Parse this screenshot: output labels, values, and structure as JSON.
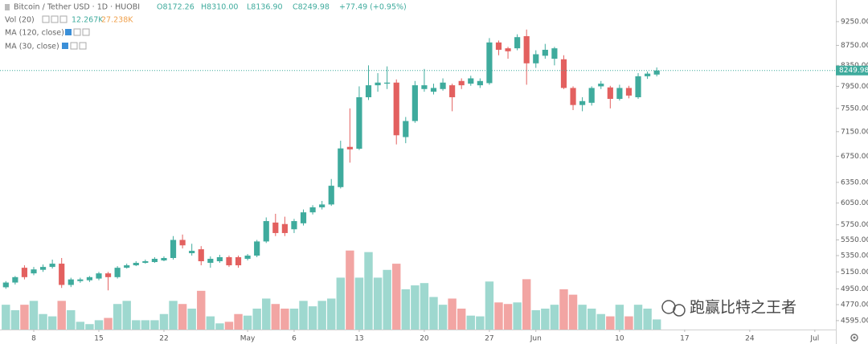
{
  "chart_data": {
    "type": "candlestick",
    "header": {
      "symbol": "Bitcoin / Tether USD · 1D · HUOBI",
      "open": "O8172.26",
      "high": "H8310.00",
      "low": "L8136.90",
      "close": "C8249.98",
      "change": "+77.49 (+0.95%)",
      "volume_study": "Vol (20)",
      "volume_now": "12.267K",
      "volume_ma": "27.238K",
      "ma1": "MA (120, close)",
      "ma2": "MA (30, close)"
    },
    "watermark": "跑赢比特之王者",
    "x": [
      0,
      1,
      2,
      3,
      4,
      5,
      6,
      7,
      8,
      9,
      10,
      11,
      12,
      13,
      14,
      15,
      16,
      17,
      18,
      19,
      20,
      21,
      22,
      23,
      24,
      25,
      26,
      27,
      28,
      29,
      30,
      31,
      32,
      33,
      34,
      35,
      36,
      37,
      38,
      39,
      40,
      41,
      42,
      43,
      44,
      45,
      46,
      47,
      48,
      49,
      50,
      51,
      52,
      53,
      54,
      55,
      56,
      57,
      58,
      59,
      60,
      61,
      62,
      63,
      64,
      65,
      66,
      67,
      68,
      69,
      70
    ],
    "open": [
      4968,
      5023,
      5200,
      5132,
      5175,
      5210,
      5250,
      4995,
      5040,
      5050,
      5070,
      5132,
      5087,
      5200,
      5230,
      5260,
      5270,
      5290,
      5320,
      5550,
      5380,
      5430,
      5260,
      5280,
      5330,
      5330,
      5310,
      5350,
      5530,
      5780,
      5760,
      5690,
      5770,
      5920,
      5990,
      6030,
      6280,
      6900,
      6870,
      7750,
      7970,
      8000,
      8020,
      7060,
      7330,
      7900,
      7850,
      7900,
      7970,
      8050,
      8000,
      7970,
      8010,
      8810,
      8690,
      8690,
      8940,
      8390,
      8540,
      8480,
      8470,
      7920,
      7610,
      7650,
      7950,
      7930,
      7720,
      7920,
      7750,
      8140,
      8172.26
    ],
    "high": [
      5040,
      5100,
      5230,
      5210,
      5240,
      5300,
      5320,
      5080,
      5080,
      5100,
      5150,
      5150,
      5220,
      5250,
      5280,
      5300,
      5330,
      5340,
      5600,
      5620,
      5500,
      5470,
      5340,
      5360,
      5350,
      5350,
      5370,
      5550,
      5850,
      5900,
      5860,
      5830,
      5960,
      6020,
      6080,
      6400,
      7000,
      7550,
      7950,
      8350,
      8200,
      8330,
      8080,
      7400,
      8050,
      8280,
      8000,
      8100,
      8000,
      8100,
      8150,
      8100,
      8900,
      8850,
      8720,
      8980,
      9080,
      8650,
      8780,
      8720,
      8550,
      7950,
      7750,
      7950,
      8050,
      7960,
      7980,
      7960,
      8200,
      8230,
      8310.0
    ],
    "low": [
      4950,
      5000,
      5060,
      5110,
      5150,
      5190,
      4960,
      4970,
      5020,
      5030,
      5050,
      4932,
      5070,
      5190,
      5220,
      5250,
      5260,
      5280,
      5300,
      5440,
      5350,
      5230,
      5200,
      5260,
      5210,
      5200,
      5290,
      5330,
      5510,
      5600,
      5600,
      5640,
      5740,
      5890,
      5960,
      6010,
      6260,
      6650,
      6850,
      7700,
      7850,
      7900,
      6940,
      6960,
      7300,
      7850,
      7800,
      7870,
      7500,
      7900,
      7960,
      7920,
      7980,
      8550,
      8480,
      8650,
      7980,
      8300,
      8480,
      8350,
      7900,
      7520,
      7500,
      7600,
      7900,
      7550,
      7690,
      7730,
      7720,
      8090,
      8136.9
    ],
    "close": [
      5023,
      5087,
      5087,
      5180,
      5210,
      5250,
      4995,
      5060,
      5060,
      5087,
      5132,
      5087,
      5200,
      5230,
      5260,
      5280,
      5310,
      5320,
      5550,
      5480,
      5410,
      5280,
      5310,
      5330,
      5230,
      5230,
      5350,
      5530,
      5800,
      5640,
      5640,
      5800,
      5920,
      5990,
      6030,
      6300,
      6875,
      6860,
      7750,
      7970,
      8020,
      8020,
      7090,
      7330,
      7970,
      7970,
      7920,
      8020,
      7750,
      7970,
      8100,
      8050,
      8810,
      8660,
      8630,
      8920,
      8390,
      8570,
      8660,
      8690,
      7920,
      7610,
      7680,
      7920,
      8000,
      7720,
      7920,
      7780,
      8140,
      8190,
      8249.98
    ],
    "volume": [
      30100,
      23500,
      30100,
      34800,
      18800,
      16000,
      34800,
      23500,
      9400,
      6600,
      11300,
      14100,
      31000,
      34800,
      11300,
      11300,
      11300,
      18800,
      34800,
      31000,
      25400,
      47000,
      16000,
      7500,
      9400,
      18800,
      16900,
      25400,
      37600,
      31000,
      25400,
      25400,
      34800,
      28200,
      34800,
      37600,
      63000,
      95900,
      63000,
      94000,
      63000,
      72400,
      79900,
      48900,
      53600,
      56400,
      39500,
      30100,
      37600,
      25400,
      16900,
      16000,
      58300,
      32900,
      31000,
      32900,
      61100,
      23500,
      25400,
      30100,
      48900,
      42300,
      30100,
      25400,
      18800,
      16000,
      30100,
      16000,
      30100,
      25400,
      12267
    ],
    "up_color": "#3fab9d",
    "down_color": "#e3605f",
    "volume_up_color": "#9ed8cf",
    "volume_down_color": "#f2a5a3",
    "price_line_color": "#3fab9d",
    "log_scale": true,
    "grid": false,
    "xlim": [
      -0.63,
      89.26
    ],
    "ylim": [
      4500,
      9730
    ],
    "volume_lim": [
      0,
      400000
    ],
    "xticks": [
      {
        "value": 3,
        "label": "8"
      },
      {
        "value": 10,
        "label": "15"
      },
      {
        "value": 17,
        "label": "22"
      },
      {
        "value": 26,
        "label": "May"
      },
      {
        "value": 31,
        "label": "6"
      },
      {
        "value": 38,
        "label": "13"
      },
      {
        "value": 45,
        "label": "20"
      },
      {
        "value": 52,
        "label": "27"
      },
      {
        "value": 57,
        "label": "Jun"
      },
      {
        "value": 66,
        "label": "10"
      },
      {
        "value": 73,
        "label": "17"
      },
      {
        "value": 80,
        "label": "24"
      },
      {
        "value": 87,
        "label": "Jul"
      }
    ],
    "yticks": [
      {
        "value": 9250,
        "label": "9250.00"
      },
      {
        "value": 8750,
        "label": "8750.00"
      },
      {
        "value": 8350,
        "label": "8350.00"
      },
      {
        "value": 7950,
        "label": "7950.00"
      },
      {
        "value": 7550,
        "label": "7550.00"
      },
      {
        "value": 7150,
        "label": "7150.00"
      },
      {
        "value": 6750,
        "label": "6750.00"
      },
      {
        "value": 6350,
        "label": "6350.00"
      },
      {
        "value": 6050,
        "label": "6050.00"
      },
      {
        "value": 5750,
        "label": "5750.00"
      },
      {
        "value": 5550,
        "label": "5550.00"
      },
      {
        "value": 5350,
        "label": "5350.00"
      },
      {
        "value": 5150,
        "label": "5150.00"
      },
      {
        "value": 4950,
        "label": "4950.00"
      },
      {
        "value": 4770,
        "label": "4770.00"
      },
      {
        "value": 4595,
        "label": "4595.00"
      }
    ]
  }
}
